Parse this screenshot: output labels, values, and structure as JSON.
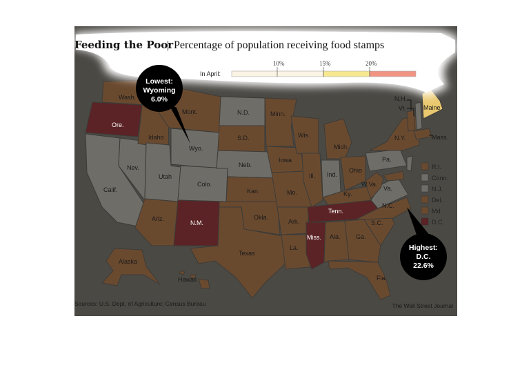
{
  "header": {
    "title": "Feeding the Poor",
    "separator": "|",
    "subtitle": "Percentage of population receiving food stamps"
  },
  "scale": {
    "label": "In April:",
    "ticks": [
      "10%",
      "15%",
      "20%"
    ],
    "colors": [
      "#fbf3e3",
      "#f7e88f",
      "#f29484"
    ]
  },
  "callouts": {
    "lowest": {
      "line1": "Lowest:",
      "line2": "Wyoming",
      "line3": "6.0%"
    },
    "highest": {
      "line1": "Highest:",
      "line2": "D.C.",
      "line3": "22.6%"
    }
  },
  "states": {
    "wa": "Wash.",
    "or": "Ore.",
    "ca": "Calif.",
    "nv": "Nev.",
    "id": "Idaho",
    "mt": "Mont.",
    "wy": "Wyo.",
    "ut": "Utah",
    "co": "Colo.",
    "az": "Ariz.",
    "nm": "N.M.",
    "nd": "N.D.",
    "sd": "S.D.",
    "ne": "Neb.",
    "ks": "Kan.",
    "ok": "Okla.",
    "tx": "Texas",
    "mn": "Minn.",
    "ia": "Iowa",
    "mo": "Mo.",
    "ar": "Ark.",
    "la": "La.",
    "wi": "Wis.",
    "il": "Ill.",
    "mi": "Mich.",
    "in": "Ind.",
    "oh": "Ohio",
    "ky": "Ky.",
    "tn": "Tenn.",
    "ms": "Miss.",
    "al": "Ala.",
    "ga": "Ga.",
    "fl": "Fla.",
    "sc": "S.C.",
    "nc": "N.C.",
    "va": "Va.",
    "wv": "W.Va.",
    "pa": "Pa.",
    "ny": "N.Y.",
    "me": "Maine",
    "nh": "N.H.",
    "vt": "Vt.",
    "ma": "Mass.",
    "ak": "Alaska",
    "hi": "Hawaii"
  },
  "ne_legend": [
    "R.I.",
    "Conn.",
    "N.J.",
    "Del.",
    "Md.",
    "D.C."
  ],
  "colors": {
    "background": "#4b4944",
    "brown": "#6a4a2f",
    "maroon": "#5b2325",
    "gray": "#6e6d68",
    "tan": "#e9c86f"
  },
  "footer": {
    "sources": "Sources: U.S. Dept. of Agriculture; Census Bureau",
    "credit": "The Wall Street Journal"
  }
}
